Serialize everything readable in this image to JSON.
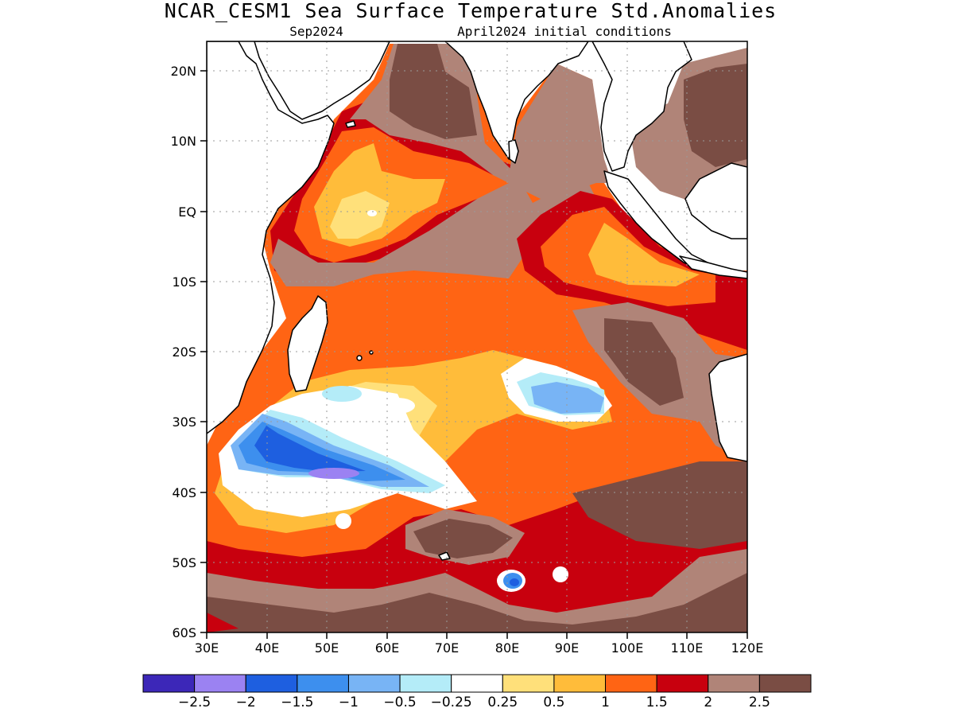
{
  "map": {
    "title": "NCAR_CESM1 Sea Surface Temperature Std.Anomalies",
    "subtitle_left": "Sep2024",
    "subtitle_right": "April2024 initial conditions",
    "lat_ticks": [
      "20N",
      "10N",
      "EQ",
      "10S",
      "20S",
      "30S",
      "40S",
      "50S",
      "60S"
    ],
    "lon_ticks": [
      "30E",
      "40E",
      "50E",
      "60E",
      "70E",
      "80E",
      "90E",
      "100E",
      "110E",
      "120E"
    ],
    "region": {
      "lon_range": [
        30,
        120
      ],
      "lat_range": [
        -60,
        24
      ]
    },
    "variable": "Sea Surface Temperature standardized anomaly"
  },
  "legend": {
    "labels": [
      "−2.5",
      "−2",
      "−1.5",
      "−1",
      "−0.5",
      "−0.25",
      "0.25",
      "0.5",
      "1",
      "1.5",
      "2",
      "2.5"
    ],
    "colors": [
      "#3c27b8",
      "#9b82f2",
      "#1e5fe0",
      "#3d8fee",
      "#78b4f5",
      "#b4ecf8",
      "#ffffff",
      "#ffe07a",
      "#ffbc3a",
      "#ff6414",
      "#c8000e",
      "#b08478",
      "#7a4d44"
    ]
  },
  "colors": {
    "land_outline": "#000000",
    "grid": "#999999"
  }
}
